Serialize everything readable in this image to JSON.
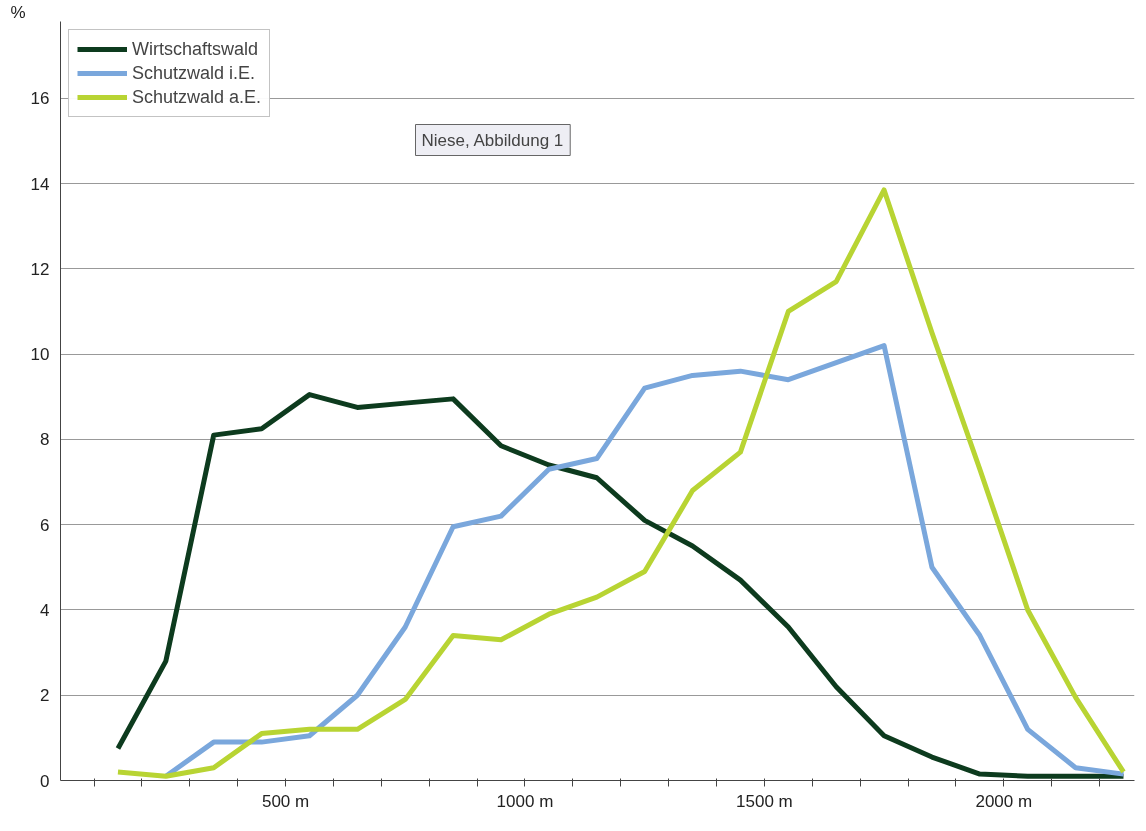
{
  "chart_data": {
    "type": "line",
    "ylabel": "%",
    "x": [
      150,
      250,
      350,
      450,
      550,
      650,
      750,
      850,
      950,
      1050,
      1150,
      1250,
      1350,
      1450,
      1550,
      1650,
      1750,
      1850,
      1950,
      2050,
      2150,
      2250
    ],
    "series": [
      {
        "name": "Wirtschaftswald",
        "color": "#0d3b1e",
        "values": [
          0.75,
          2.8,
          8.1,
          8.25,
          9.05,
          8.75,
          8.85,
          8.95,
          7.85,
          7.4,
          7.1,
          6.1,
          5.5,
          4.7,
          3.6,
          2.2,
          1.05,
          0.55,
          0.15,
          0.1,
          0.1,
          0.1
        ]
      },
      {
        "name": "Schutzwald i.E.",
        "color": "#7aa7dc",
        "values": [
          null,
          0.1,
          0.9,
          0.9,
          1.05,
          2.0,
          3.6,
          5.95,
          6.2,
          7.3,
          7.55,
          9.2,
          9.5,
          9.6,
          9.4,
          9.8,
          10.2,
          5.0,
          3.4,
          1.2,
          0.3,
          0.15
        ]
      },
      {
        "name": "Schutzwald a.E.",
        "color": "#b8d433",
        "values": [
          0.2,
          0.1,
          0.3,
          1.1,
          1.2,
          1.2,
          1.9,
          3.4,
          3.3,
          3.9,
          4.3,
          4.9,
          6.8,
          7.7,
          11.0,
          11.7,
          13.85,
          10.5,
          7.3,
          4.0,
          1.95,
          0.2
        ]
      }
    ],
    "xlim": [
      30,
      2273
    ],
    "xticks": [
      {
        "value": 100,
        "label": null
      },
      {
        "value": 200,
        "label": null
      },
      {
        "value": 300,
        "label": null
      },
      {
        "value": 400,
        "label": null
      },
      {
        "value": 500,
        "label": "500 m"
      },
      {
        "value": 600,
        "label": null
      },
      {
        "value": 700,
        "label": null
      },
      {
        "value": 800,
        "label": null
      },
      {
        "value": 900,
        "label": null
      },
      {
        "value": 1000,
        "label": "1000 m"
      },
      {
        "value": 1100,
        "label": null
      },
      {
        "value": 1200,
        "label": null
      },
      {
        "value": 1300,
        "label": null
      },
      {
        "value": 1400,
        "label": null
      },
      {
        "value": 1500,
        "label": "1500 m"
      },
      {
        "value": 1600,
        "label": null
      },
      {
        "value": 1700,
        "label": null
      },
      {
        "value": 1800,
        "label": null
      },
      {
        "value": 1900,
        "label": null
      },
      {
        "value": 2000,
        "label": "2000 m"
      },
      {
        "value": 2100,
        "label": null
      },
      {
        "value": 2200,
        "label": null
      }
    ],
    "ylim": [
      0,
      17.8
    ],
    "yticks": [
      0,
      2,
      4,
      6,
      8,
      10,
      12,
      14,
      16
    ],
    "grid": "y",
    "legend": "top left",
    "line_style": "solid",
    "marker": "none",
    "annotations": [
      "Niese, Abbildung 1"
    ]
  }
}
